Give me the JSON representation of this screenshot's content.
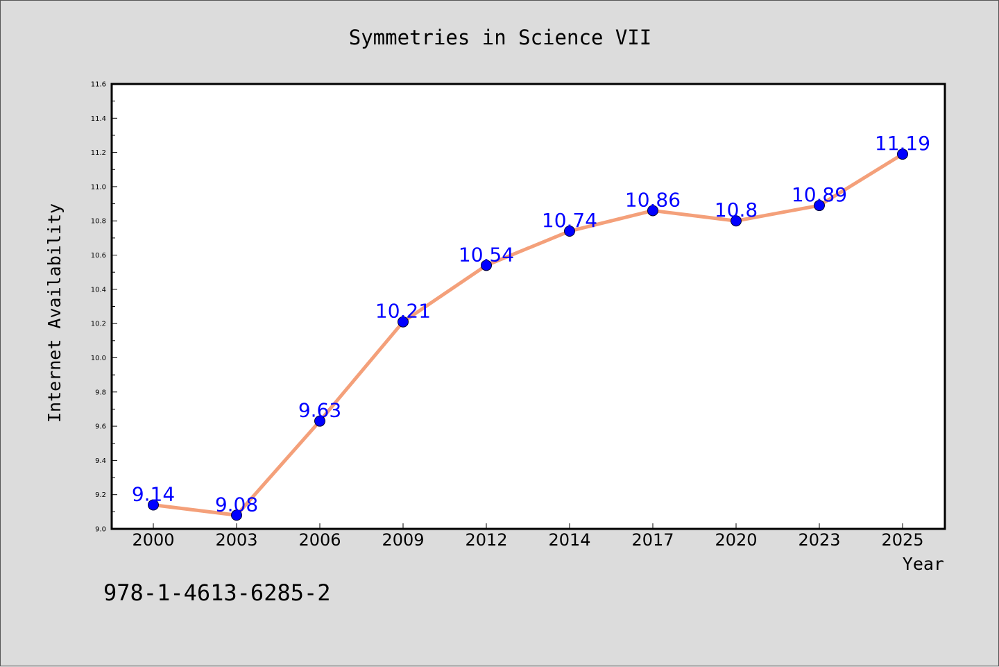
{
  "chart_data": {
    "type": "line",
    "title": "Symmetries in Science VII",
    "xlabel": "Year",
    "ylabel": "Internet Availability",
    "categories": [
      "2000",
      "2003",
      "2006",
      "2009",
      "2012",
      "2014",
      "2017",
      "2020",
      "2023",
      "2025"
    ],
    "series": [
      {
        "values": [
          9.14,
          9.08,
          9.63,
          10.21,
          10.54,
          10.74,
          10.86,
          10.8,
          10.89,
          11.19
        ],
        "labels": [
          "9.14",
          "9.08",
          "9.63",
          "10.21",
          "10.54",
          "10.74",
          "10.86",
          "10.8",
          "10.89",
          "11.19"
        ],
        "line_color": "#f4a07a",
        "marker_color": "#0000ff",
        "label_color": "#0000ff"
      }
    ],
    "ylim": [
      9.0,
      11.6
    ],
    "yticks": [
      "9.0",
      "9.2",
      "9.4",
      "9.6",
      "9.8",
      "10.0",
      "10.2",
      "10.4",
      "10.6",
      "10.8",
      "11.0",
      "11.2",
      "11.4",
      "11.6"
    ],
    "grid": false,
    "legend": "none",
    "background": "#dcdcdc",
    "plot_background": "#ffffff"
  },
  "footer_text": "978-1-4613-6285-2"
}
